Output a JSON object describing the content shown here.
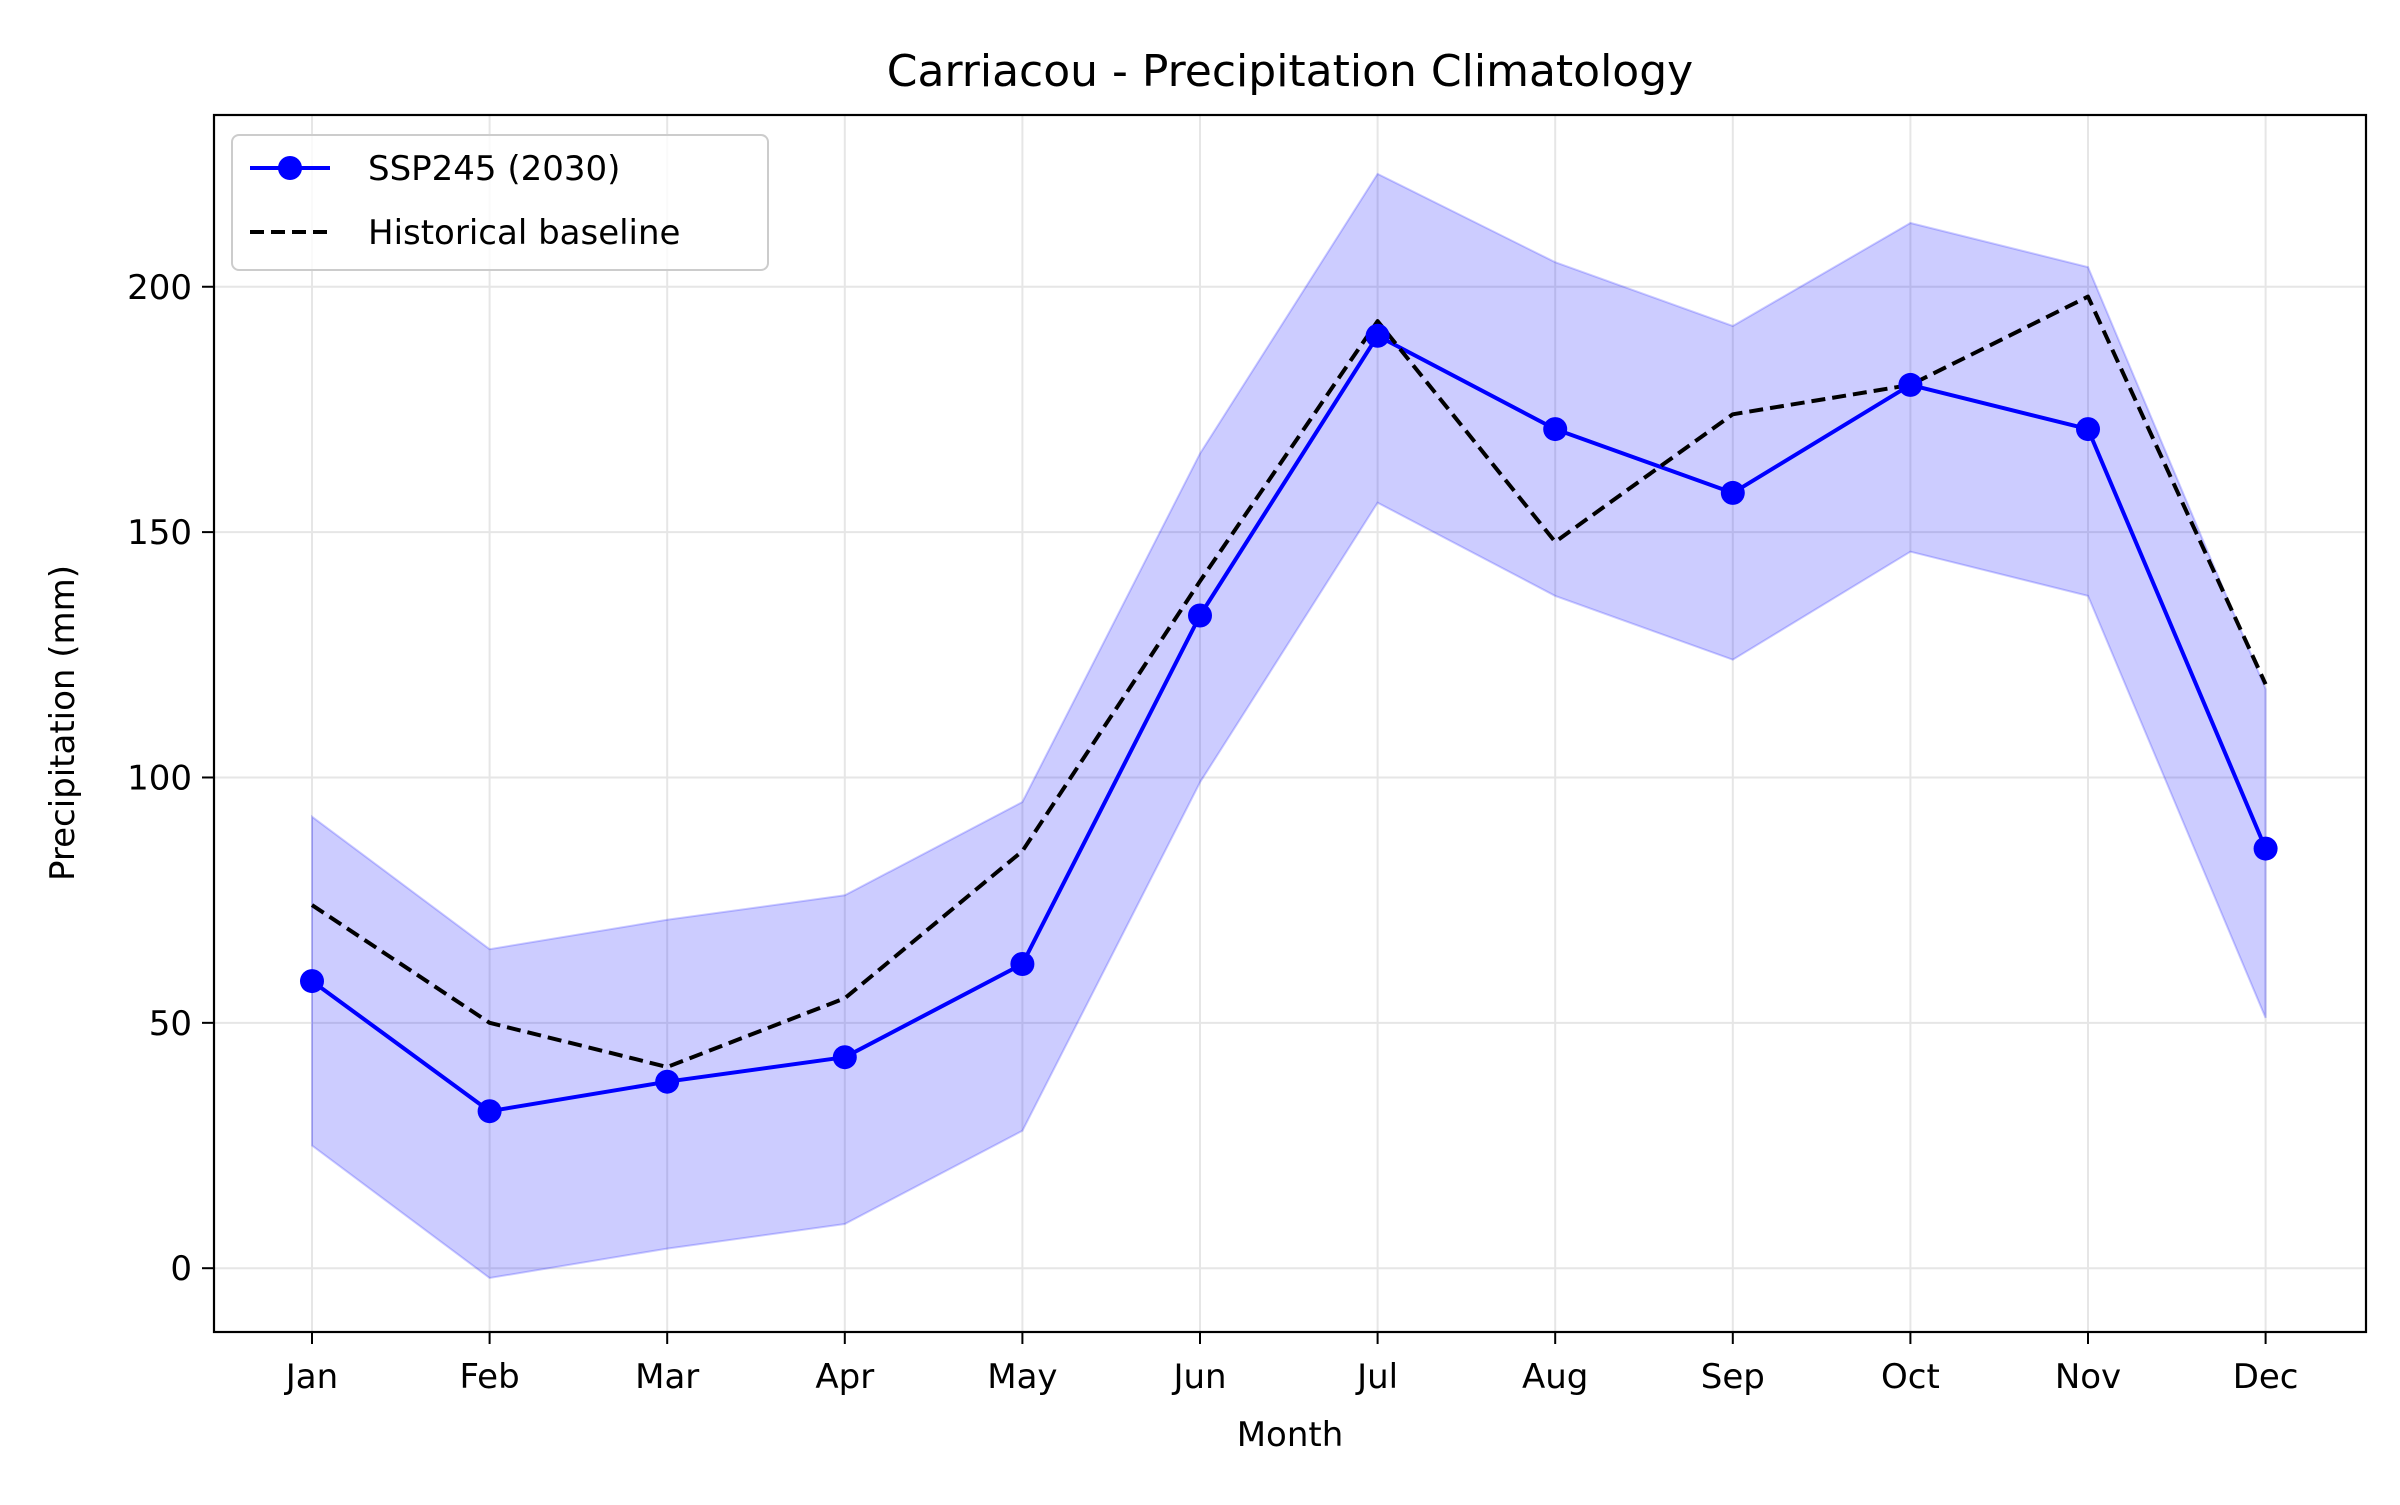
{
  "chart_data": {
    "type": "line",
    "title": "Carriacou - Precipitation Climatology",
    "xlabel": "Month",
    "ylabel": "Precipitation (mm)",
    "categories": [
      "Jan",
      "Feb",
      "Mar",
      "Apr",
      "May",
      "Jun",
      "Jul",
      "Aug",
      "Sep",
      "Oct",
      "Nov",
      "Dec"
    ],
    "ylim": [
      -13,
      235
    ],
    "yticks": [
      0,
      50,
      100,
      150,
      200
    ],
    "grid": true,
    "legend_position": "top-left",
    "series": [
      {
        "name": "SSP245 (2030)",
        "style": "solid-with-markers",
        "color": "#0000ff",
        "values": [
          58.5,
          32,
          38,
          43,
          62,
          133,
          190,
          171,
          158,
          180,
          171,
          85.5
        ]
      },
      {
        "name": "Historical baseline",
        "style": "dashed",
        "color": "#000000",
        "values": [
          74,
          50,
          41,
          55,
          85,
          140,
          193,
          148,
          174,
          180,
          198,
          119
        ]
      }
    ],
    "band": {
      "color": "#0000ff",
      "lower": [
        25,
        -2,
        4,
        9,
        28,
        99,
        156,
        137,
        124,
        146,
        137,
        51
      ],
      "upper": [
        92,
        65,
        71,
        76,
        95,
        166,
        223,
        205,
        192,
        213,
        204,
        118
      ]
    }
  }
}
